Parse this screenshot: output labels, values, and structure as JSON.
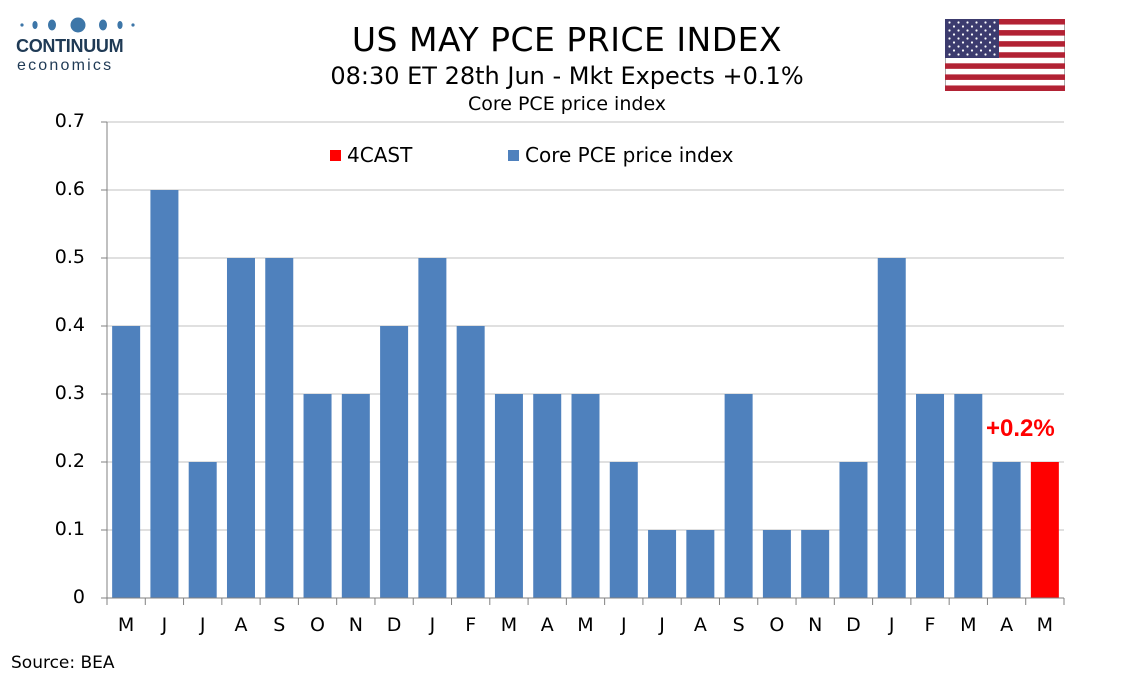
{
  "logo": {
    "brand": "CONTINUUM",
    "sub": "economics",
    "dot_color": "#3d76a8"
  },
  "header": {
    "title": "US MAY PCE PRICE INDEX",
    "subtitle": "08:30 ET 28th Jun - Mkt Expects +0.1%"
  },
  "flag_icon": "us-flag-icon",
  "source": "Source: BEA",
  "callout": "+0.2%",
  "colors": {
    "series": "#4f81bd",
    "forecast": "#ff0000",
    "grid": "#c0c0c0",
    "axis": "#808080"
  },
  "chart_data": {
    "type": "bar",
    "title": "Core PCE price index",
    "xlabel": "",
    "ylabel": "",
    "ylim": [
      0,
      0.7
    ],
    "yticks": [
      "0",
      "0.1",
      "0.2",
      "0.3",
      "0.4",
      "0.5",
      "0.6",
      "0.7"
    ],
    "grid": true,
    "legend_position": "top",
    "categories": [
      "M",
      "J",
      "J",
      "A",
      "S",
      "O",
      "N",
      "D",
      "J",
      "F",
      "M",
      "A",
      "M",
      "J",
      "J",
      "A",
      "S",
      "O",
      "N",
      "D",
      "J",
      "F",
      "M",
      "A",
      "M"
    ],
    "series": [
      {
        "name": "4CAST",
        "color": "#ff0000",
        "values": [
          null,
          null,
          null,
          null,
          null,
          null,
          null,
          null,
          null,
          null,
          null,
          null,
          null,
          null,
          null,
          null,
          null,
          null,
          null,
          null,
          null,
          null,
          null,
          null,
          0.2
        ]
      },
      {
        "name": "Core PCE price index",
        "color": "#4f81bd",
        "values": [
          0.4,
          0.6,
          0.2,
          0.5,
          0.5,
          0.3,
          0.3,
          0.4,
          0.5,
          0.4,
          0.3,
          0.3,
          0.3,
          0.2,
          0.1,
          0.1,
          0.3,
          0.1,
          0.1,
          0.2,
          0.5,
          0.3,
          0.3,
          0.2,
          null
        ]
      }
    ]
  }
}
